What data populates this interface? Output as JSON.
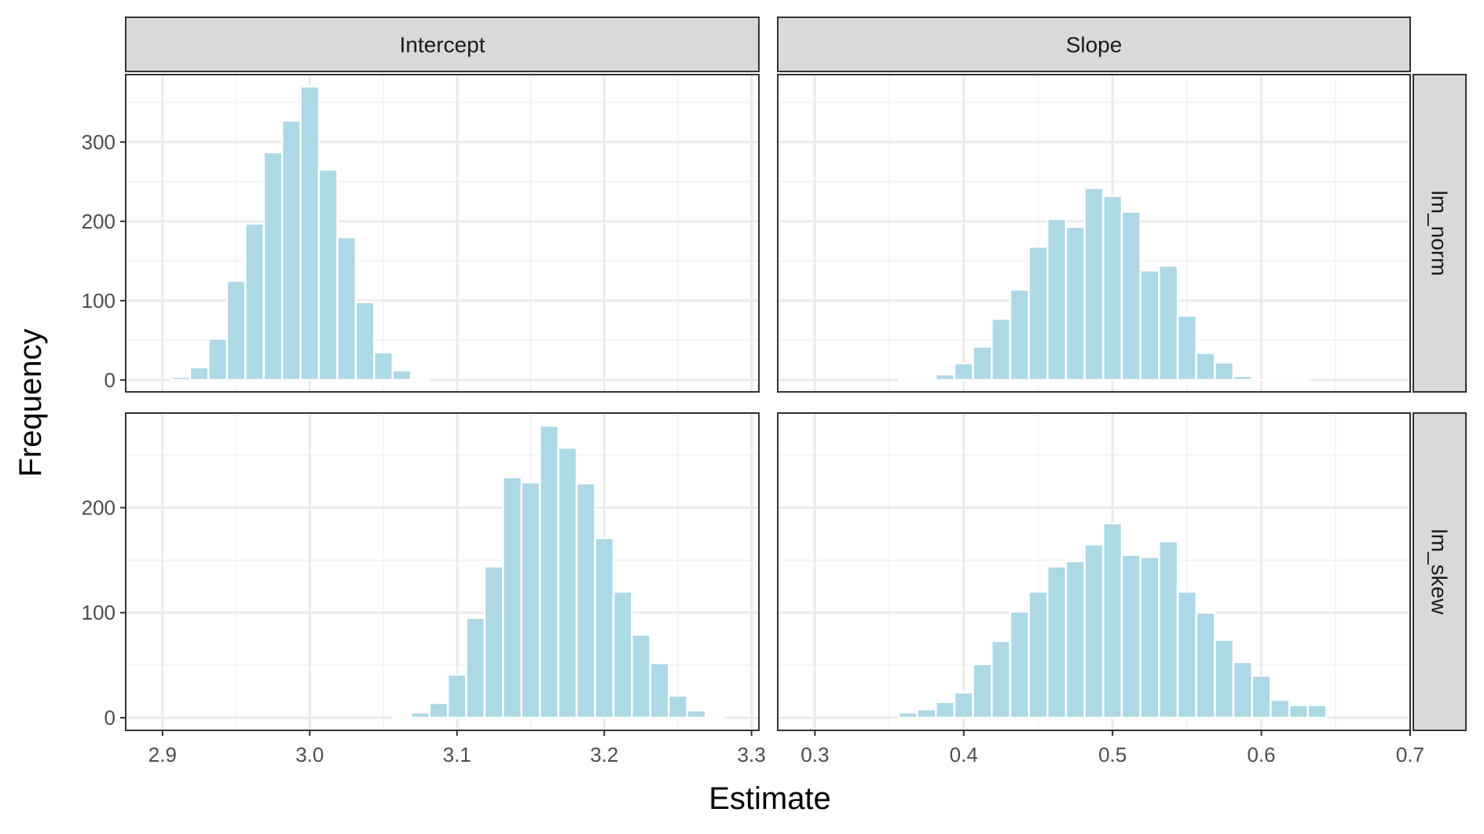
{
  "chart_data": {
    "type": "bar",
    "xlabel": "Estimate",
    "ylabel": "Frequency",
    "grid": true,
    "bar_color": "#ADD8E6",
    "strip_fill": "#D9D9D9",
    "columns": [
      "Intercept",
      "Slope"
    ],
    "rows": [
      "lm_norm",
      "lm_skew"
    ],
    "x_axes": {
      "Intercept": {
        "xlim": [
          2.875,
          3.305
        ],
        "ticks": [
          2.9,
          3.0,
          3.1,
          3.2,
          3.3
        ],
        "tick_labels": [
          "2.9",
          "3.0",
          "3.1",
          "3.2",
          "3.3"
        ],
        "binwidth": 0.0125
      },
      "Slope": {
        "xlim": [
          0.275,
          0.7
        ],
        "ticks": [
          0.3,
          0.4,
          0.5,
          0.6,
          0.7
        ],
        "tick_labels": [
          "0.3",
          "0.4",
          "0.5",
          "0.6",
          "0.7"
        ],
        "binwidth": 0.0125
      }
    },
    "y_axes": {
      "lm_norm": {
        "ylim": [
          -15,
          385
        ],
        "ticks": [
          0,
          100,
          200,
          300
        ],
        "tick_labels": [
          "0",
          "100",
          "200",
          "300"
        ]
      },
      "lm_skew": {
        "ylim": [
          -12,
          290
        ],
        "ticks": [
          0,
          100,
          200
        ],
        "tick_labels": [
          "0",
          "100",
          "200"
        ]
      }
    },
    "panels": [
      {
        "row": "lm_norm",
        "col": "Intercept",
        "x": [
          2.9125,
          2.925,
          2.9375,
          2.95,
          2.9625,
          2.975,
          2.9875,
          3.0,
          3.0125,
          3.025,
          3.0375,
          3.05,
          3.0625,
          3.075
        ],
        "values": [
          4,
          16,
          52,
          125,
          197,
          287,
          327,
          370,
          265,
          180,
          98,
          35,
          12,
          0
        ]
      },
      {
        "row": "lm_norm",
        "col": "Slope",
        "x": [
          0.3625,
          0.375,
          0.3875,
          0.4,
          0.4125,
          0.425,
          0.4375,
          0.45,
          0.4625,
          0.475,
          0.4875,
          0.5,
          0.5125,
          0.525,
          0.5375,
          0.55,
          0.5625,
          0.575,
          0.5875,
          0.6,
          0.6125,
          0.625
        ],
        "values": [
          1,
          2,
          7,
          21,
          42,
          77,
          114,
          168,
          203,
          193,
          242,
          232,
          212,
          138,
          144,
          81,
          34,
          22,
          5,
          0,
          1,
          0
        ]
      },
      {
        "row": "lm_skew",
        "col": "Intercept",
        "x": [
          3.0625,
          3.075,
          3.0875,
          3.1,
          3.1125,
          3.125,
          3.1375,
          3.15,
          3.1625,
          3.175,
          3.1875,
          3.2,
          3.2125,
          3.225,
          3.2375,
          3.25,
          3.2625,
          3.275
        ],
        "values": [
          2,
          5,
          14,
          41,
          95,
          144,
          229,
          224,
          278,
          257,
          223,
          171,
          120,
          79,
          52,
          21,
          7,
          0
        ]
      },
      {
        "row": "lm_skew",
        "col": "Slope",
        "x": [
          0.3625,
          0.375,
          0.3875,
          0.4,
          0.4125,
          0.425,
          0.4375,
          0.45,
          0.4625,
          0.475,
          0.4875,
          0.5,
          0.5125,
          0.525,
          0.5375,
          0.55,
          0.5625,
          0.575,
          0.5875,
          0.6,
          0.6125,
          0.625,
          0.6375
        ],
        "values": [
          5,
          8,
          15,
          24,
          51,
          73,
          101,
          120,
          144,
          149,
          165,
          185,
          155,
          153,
          168,
          120,
          100,
          74,
          53,
          40,
          17,
          12,
          12
        ]
      }
    ]
  }
}
